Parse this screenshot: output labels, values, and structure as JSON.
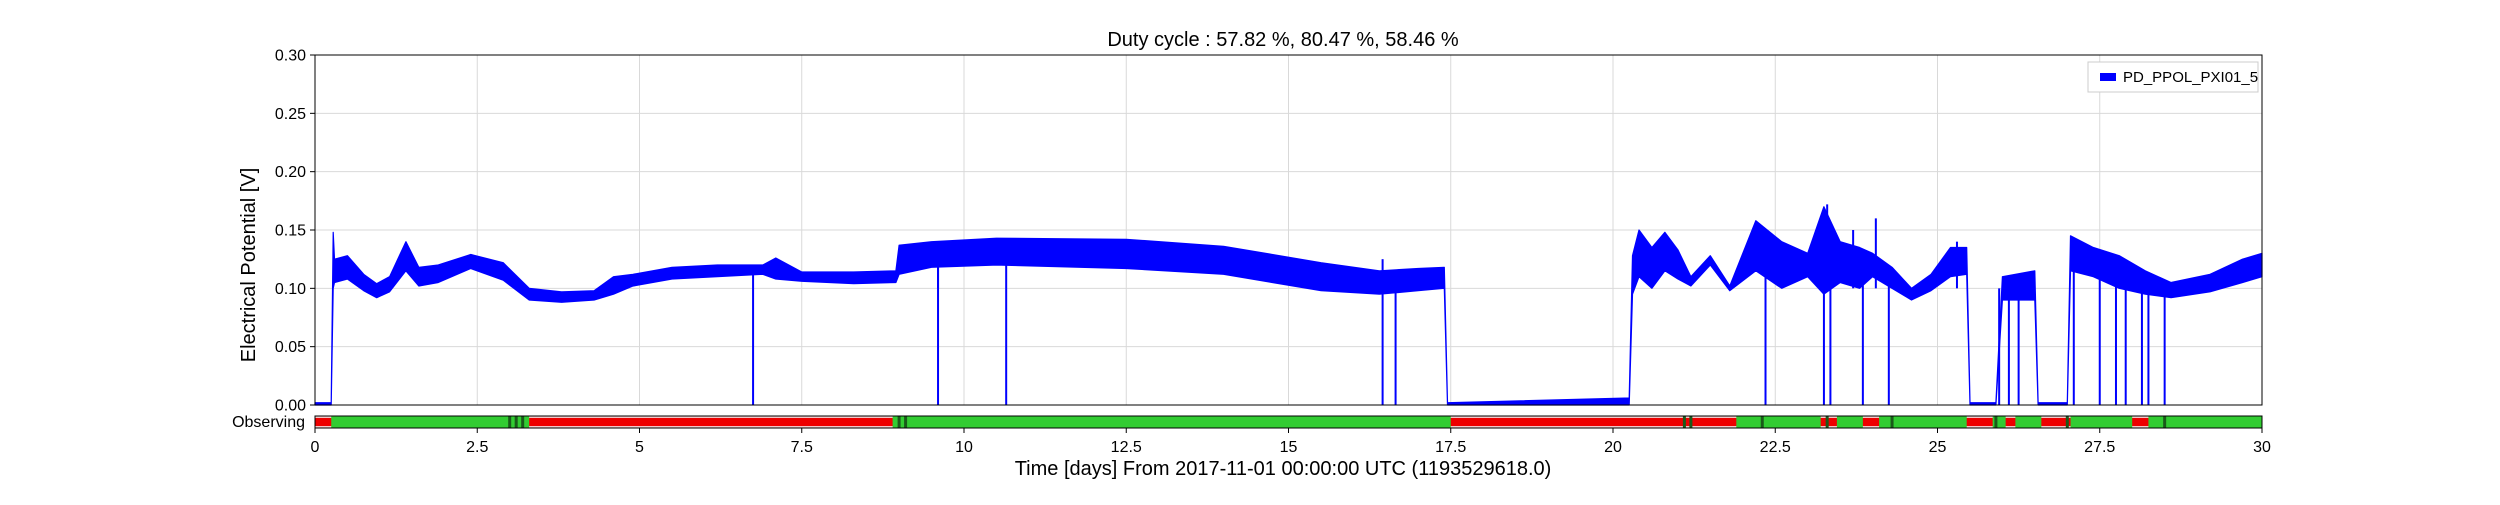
{
  "chart_data": {
    "type": "line",
    "title": "Duty cycle : 57.82 %, 80.47 %, 58.46 %",
    "xlabel": "Time [days] From 2017-11-01 00:00:00 UTC (1193529618.0)",
    "ylabel": "Electrical Potential [V]",
    "xlim": [
      0,
      30
    ],
    "ylim": [
      0,
      0.3
    ],
    "x_ticks": [
      0,
      2.5,
      5,
      7.5,
      10,
      12.5,
      15,
      17.5,
      20,
      22.5,
      25,
      27.5,
      30
    ],
    "x_tick_labels": [
      "0",
      "2.5",
      "5",
      "7.5",
      "10",
      "12.5",
      "15",
      "17.5",
      "20",
      "22.5",
      "25",
      "27.5",
      "30"
    ],
    "y_ticks": [
      0,
      0.05,
      0.1,
      0.15,
      0.2,
      0.25,
      0.3
    ],
    "y_tick_labels": [
      "0.00",
      "0.05",
      "0.10",
      "0.15",
      "0.20",
      "0.25",
      "0.30"
    ],
    "grid": true,
    "legend_position": "top-right",
    "series": [
      {
        "name": "PD_PPOL_PXI01_5",
        "color": "#0000ff",
        "band_points": [
          [
            0,
            0.0,
            0.002
          ],
          [
            0.25,
            0.0,
            0.002
          ],
          [
            0.28,
            0.1,
            0.148
          ],
          [
            0.3,
            0.105,
            0.125
          ],
          [
            0.5,
            0.108,
            0.128
          ],
          [
            0.75,
            0.098,
            0.112
          ],
          [
            0.95,
            0.092,
            0.104
          ],
          [
            1.15,
            0.097,
            0.11
          ],
          [
            1.4,
            0.115,
            0.14
          ],
          [
            1.6,
            0.102,
            0.118
          ],
          [
            1.9,
            0.105,
            0.12
          ],
          [
            2.4,
            0.117,
            0.129
          ],
          [
            2.9,
            0.107,
            0.122
          ],
          [
            3.3,
            0.09,
            0.1
          ],
          [
            3.8,
            0.088,
            0.097
          ],
          [
            4.3,
            0.09,
            0.098
          ],
          [
            4.6,
            0.095,
            0.11
          ],
          [
            4.9,
            0.102,
            0.112
          ],
          [
            5.5,
            0.108,
            0.118
          ],
          [
            6.2,
            0.11,
            0.12
          ],
          [
            6.9,
            0.112,
            0.12
          ],
          [
            7.1,
            0.108,
            0.126
          ],
          [
            7.5,
            0.106,
            0.114
          ],
          [
            8.3,
            0.104,
            0.114
          ],
          [
            8.95,
            0.105,
            0.115
          ],
          [
            9.0,
            0.112,
            0.137
          ],
          [
            9.5,
            0.118,
            0.14
          ],
          [
            10.5,
            0.12,
            0.143
          ],
          [
            12.5,
            0.117,
            0.142
          ],
          [
            14.0,
            0.112,
            0.136
          ],
          [
            15.5,
            0.098,
            0.122
          ],
          [
            16.4,
            0.095,
            0.115
          ],
          [
            17.0,
            0.098,
            0.117
          ],
          [
            17.4,
            0.1,
            0.118
          ],
          [
            17.45,
            0.0,
            0.002
          ],
          [
            20.25,
            0.0,
            0.006
          ],
          [
            20.3,
            0.095,
            0.128
          ],
          [
            20.4,
            0.11,
            0.15
          ],
          [
            20.6,
            0.1,
            0.135
          ],
          [
            20.8,
            0.115,
            0.148
          ],
          [
            21.0,
            0.108,
            0.133
          ],
          [
            21.2,
            0.102,
            0.11
          ],
          [
            21.5,
            0.12,
            0.128
          ],
          [
            21.8,
            0.098,
            0.102
          ],
          [
            22.2,
            0.115,
            0.158
          ],
          [
            22.6,
            0.1,
            0.14
          ],
          [
            23.0,
            0.11,
            0.13
          ],
          [
            23.25,
            0.095,
            0.17
          ],
          [
            23.5,
            0.105,
            0.14
          ],
          [
            23.8,
            0.1,
            0.135
          ],
          [
            24.0,
            0.11,
            0.13
          ],
          [
            24.3,
            0.1,
            0.118
          ],
          [
            24.6,
            0.09,
            0.1
          ],
          [
            24.9,
            0.098,
            0.112
          ],
          [
            25.2,
            0.11,
            0.135
          ],
          [
            25.45,
            0.112,
            0.135
          ],
          [
            25.5,
            0.0,
            0.002
          ],
          [
            25.9,
            0.0,
            0.002
          ],
          [
            26.0,
            0.09,
            0.11
          ],
          [
            26.5,
            0.09,
            0.115
          ],
          [
            26.55,
            0.0,
            0.002
          ],
          [
            27.0,
            0.0,
            0.002
          ],
          [
            27.05,
            0.115,
            0.145
          ],
          [
            27.4,
            0.11,
            0.135
          ],
          [
            27.8,
            0.1,
            0.128
          ],
          [
            28.2,
            0.095,
            0.115
          ],
          [
            28.6,
            0.092,
            0.105
          ],
          [
            29.2,
            0.097,
            0.112
          ],
          [
            29.7,
            0.105,
            0.125
          ],
          [
            30.0,
            0.11,
            0.13
          ]
        ],
        "spikes_down": [
          6.75,
          9.6,
          10.65,
          16.45,
          16.65,
          22.35,
          23.25,
          23.35,
          23.85,
          24.25,
          25.95,
          26.1,
          26.25,
          27.1,
          27.5,
          27.75,
          27.9,
          28.15,
          28.25,
          28.5
        ],
        "spikes_up": [
          [
            9.6,
            0.125
          ],
          [
            16.45,
            0.125
          ],
          [
            23.3,
            0.172
          ],
          [
            23.7,
            0.15
          ],
          [
            24.05,
            0.16
          ],
          [
            25.3,
            0.14
          ]
        ]
      }
    ],
    "state_bar": {
      "label": "Observing",
      "on_color": "#32cc32",
      "off_color": "#ee0000",
      "on_segments": [
        [
          0.25,
          3.3
        ],
        [
          8.9,
          17.5
        ],
        [
          21.9,
          23.2
        ],
        [
          23.45,
          23.85
        ],
        [
          24.1,
          25.45
        ],
        [
          25.85,
          26.05
        ],
        [
          26.2,
          26.6
        ],
        [
          27.05,
          28.0
        ],
        [
          28.25,
          30.0
        ]
      ],
      "dark_marks": [
        3.0,
        3.1,
        3.2,
        9.0,
        9.1,
        21.1,
        21.2,
        22.3,
        23.3,
        24.3,
        25.9,
        27.0,
        28.5
      ]
    }
  }
}
